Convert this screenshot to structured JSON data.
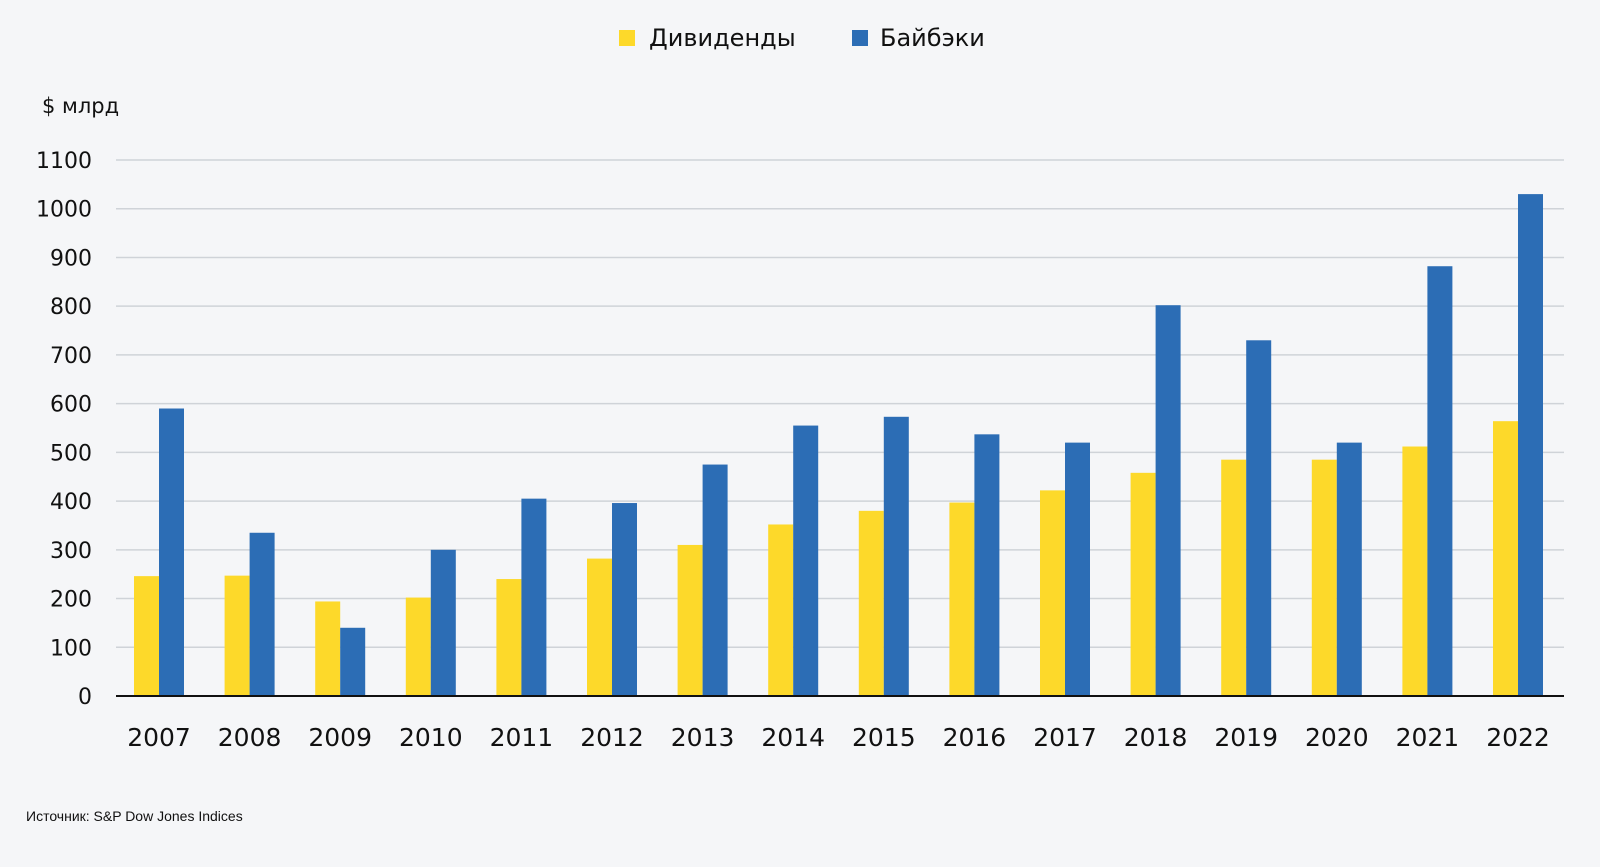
{
  "chart_data": {
    "type": "bar",
    "title": "",
    "ylabel": "$ млрд",
    "xlabel": "",
    "ylim": [
      0,
      1100
    ],
    "yticks": [
      0,
      100,
      200,
      300,
      400,
      500,
      600,
      700,
      800,
      900,
      1000,
      1100
    ],
    "grid": true,
    "legend_position": "top-center",
    "categories": [
      "2007",
      "2008",
      "2009",
      "2010",
      "2011",
      "2012",
      "2013",
      "2014",
      "2015",
      "2016",
      "2017",
      "2018",
      "2019",
      "2020",
      "2021",
      "2022"
    ],
    "series": [
      {
        "name": "Дивиденды",
        "color": "#fdd92a",
        "values": [
          246,
          247,
          194,
          202,
          240,
          282,
          310,
          352,
          380,
          397,
          422,
          458,
          485,
          485,
          512,
          564
        ]
      },
      {
        "name": "Байбэки",
        "color": "#2c6db5",
        "values": [
          590,
          335,
          140,
          300,
          405,
          396,
          475,
          555,
          573,
          537,
          520,
          802,
          730,
          520,
          882,
          1030
        ]
      }
    ]
  },
  "footer": {
    "source": "Источник: S&P Dow Jones Indices"
  }
}
